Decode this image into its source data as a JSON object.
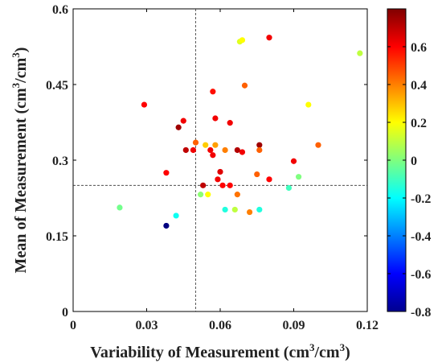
{
  "chart_data": {
    "type": "scatter",
    "title": "",
    "xlabel": "Variability of Measurement (cm³/cm³)",
    "xlabel_parts": [
      "Variability of Measurement (cm",
      "3",
      "/cm",
      "3",
      ")"
    ],
    "ylabel": "Mean of Measurement (cm³/cm³)",
    "ylabel_parts": [
      "Mean of Measurement (cm",
      "3",
      "/cm",
      "3",
      ")"
    ],
    "xlim": [
      0,
      0.12
    ],
    "ylim": [
      0,
      0.6
    ],
    "xticks": [
      "0",
      "0.03",
      "0.06",
      "0.09",
      "0.12"
    ],
    "xtick_values": [
      0,
      0.03,
      0.06,
      0.09,
      0.12
    ],
    "yticks": [
      "0",
      "0.15",
      "0.3",
      "0.45",
      "0.6"
    ],
    "ytick_values": [
      0,
      0.15,
      0.3,
      0.45,
      0.6
    ],
    "grid": false,
    "reference_lines": {
      "x": 0.05,
      "y": 0.25,
      "style": "dashed"
    },
    "colorbar": {
      "range": [
        -0.8,
        0.8
      ],
      "ticks": [
        "0.6",
        "0.4",
        "0.2",
        "0",
        "-0.2",
        "-0.4",
        "-0.6",
        "-0.8"
      ],
      "tick_values": [
        0.6,
        0.4,
        0.2,
        0,
        -0.2,
        -0.4,
        -0.6,
        -0.8
      ],
      "colormap": "jet"
    },
    "points": [
      {
        "x": 0.019,
        "y": 0.206,
        "c": -0.02
      },
      {
        "x": 0.029,
        "y": 0.41,
        "c": 0.6
      },
      {
        "x": 0.038,
        "y": 0.17,
        "c": -0.8
      },
      {
        "x": 0.038,
        "y": 0.275,
        "c": 0.6
      },
      {
        "x": 0.042,
        "y": 0.19,
        "c": -0.18
      },
      {
        "x": 0.043,
        "y": 0.365,
        "c": 0.75
      },
      {
        "x": 0.045,
        "y": 0.378,
        "c": 0.62
      },
      {
        "x": 0.046,
        "y": 0.32,
        "c": 0.7
      },
      {
        "x": 0.049,
        "y": 0.32,
        "c": 0.62
      },
      {
        "x": 0.05,
        "y": 0.335,
        "c": 0.45
      },
      {
        "x": 0.052,
        "y": 0.232,
        "c": 0.02
      },
      {
        "x": 0.053,
        "y": 0.25,
        "c": 0.7
      },
      {
        "x": 0.054,
        "y": 0.33,
        "c": 0.28
      },
      {
        "x": 0.055,
        "y": 0.232,
        "c": 0.2
      },
      {
        "x": 0.056,
        "y": 0.32,
        "c": 0.62
      },
      {
        "x": 0.057,
        "y": 0.31,
        "c": 0.62
      },
      {
        "x": 0.057,
        "y": 0.436,
        "c": 0.58
      },
      {
        "x": 0.058,
        "y": 0.383,
        "c": 0.62
      },
      {
        "x": 0.058,
        "y": 0.33,
        "c": 0.35
      },
      {
        "x": 0.059,
        "y": 0.262,
        "c": 0.62
      },
      {
        "x": 0.06,
        "y": 0.277,
        "c": 0.65
      },
      {
        "x": 0.061,
        "y": 0.25,
        "c": 0.6
      },
      {
        "x": 0.062,
        "y": 0.32,
        "c": 0.4
      },
      {
        "x": 0.062,
        "y": 0.202,
        "c": -0.15
      },
      {
        "x": 0.064,
        "y": 0.374,
        "c": 0.62
      },
      {
        "x": 0.064,
        "y": 0.25,
        "c": 0.6
      },
      {
        "x": 0.066,
        "y": 0.202,
        "c": 0.1
      },
      {
        "x": 0.067,
        "y": 0.232,
        "c": 0.42
      },
      {
        "x": 0.067,
        "y": 0.32,
        "c": 0.72
      },
      {
        "x": 0.068,
        "y": 0.535,
        "c": 0.15
      },
      {
        "x": 0.069,
        "y": 0.538,
        "c": 0.2
      },
      {
        "x": 0.069,
        "y": 0.316,
        "c": 0.62
      },
      {
        "x": 0.07,
        "y": 0.448,
        "c": 0.45
      },
      {
        "x": 0.072,
        "y": 0.197,
        "c": 0.4
      },
      {
        "x": 0.075,
        "y": 0.272,
        "c": 0.45
      },
      {
        "x": 0.076,
        "y": 0.33,
        "c": 0.75
      },
      {
        "x": 0.076,
        "y": 0.32,
        "c": 0.45
      },
      {
        "x": 0.076,
        "y": 0.202,
        "c": -0.15
      },
      {
        "x": 0.08,
        "y": 0.543,
        "c": 0.62
      },
      {
        "x": 0.08,
        "y": 0.262,
        "c": 0.6
      },
      {
        "x": 0.088,
        "y": 0.245,
        "c": -0.1
      },
      {
        "x": 0.09,
        "y": 0.298,
        "c": 0.62
      },
      {
        "x": 0.092,
        "y": 0.267,
        "c": 0.0
      },
      {
        "x": 0.096,
        "y": 0.41,
        "c": 0.2
      },
      {
        "x": 0.1,
        "y": 0.33,
        "c": 0.45
      },
      {
        "x": 0.117,
        "y": 0.512,
        "c": 0.1
      }
    ]
  }
}
